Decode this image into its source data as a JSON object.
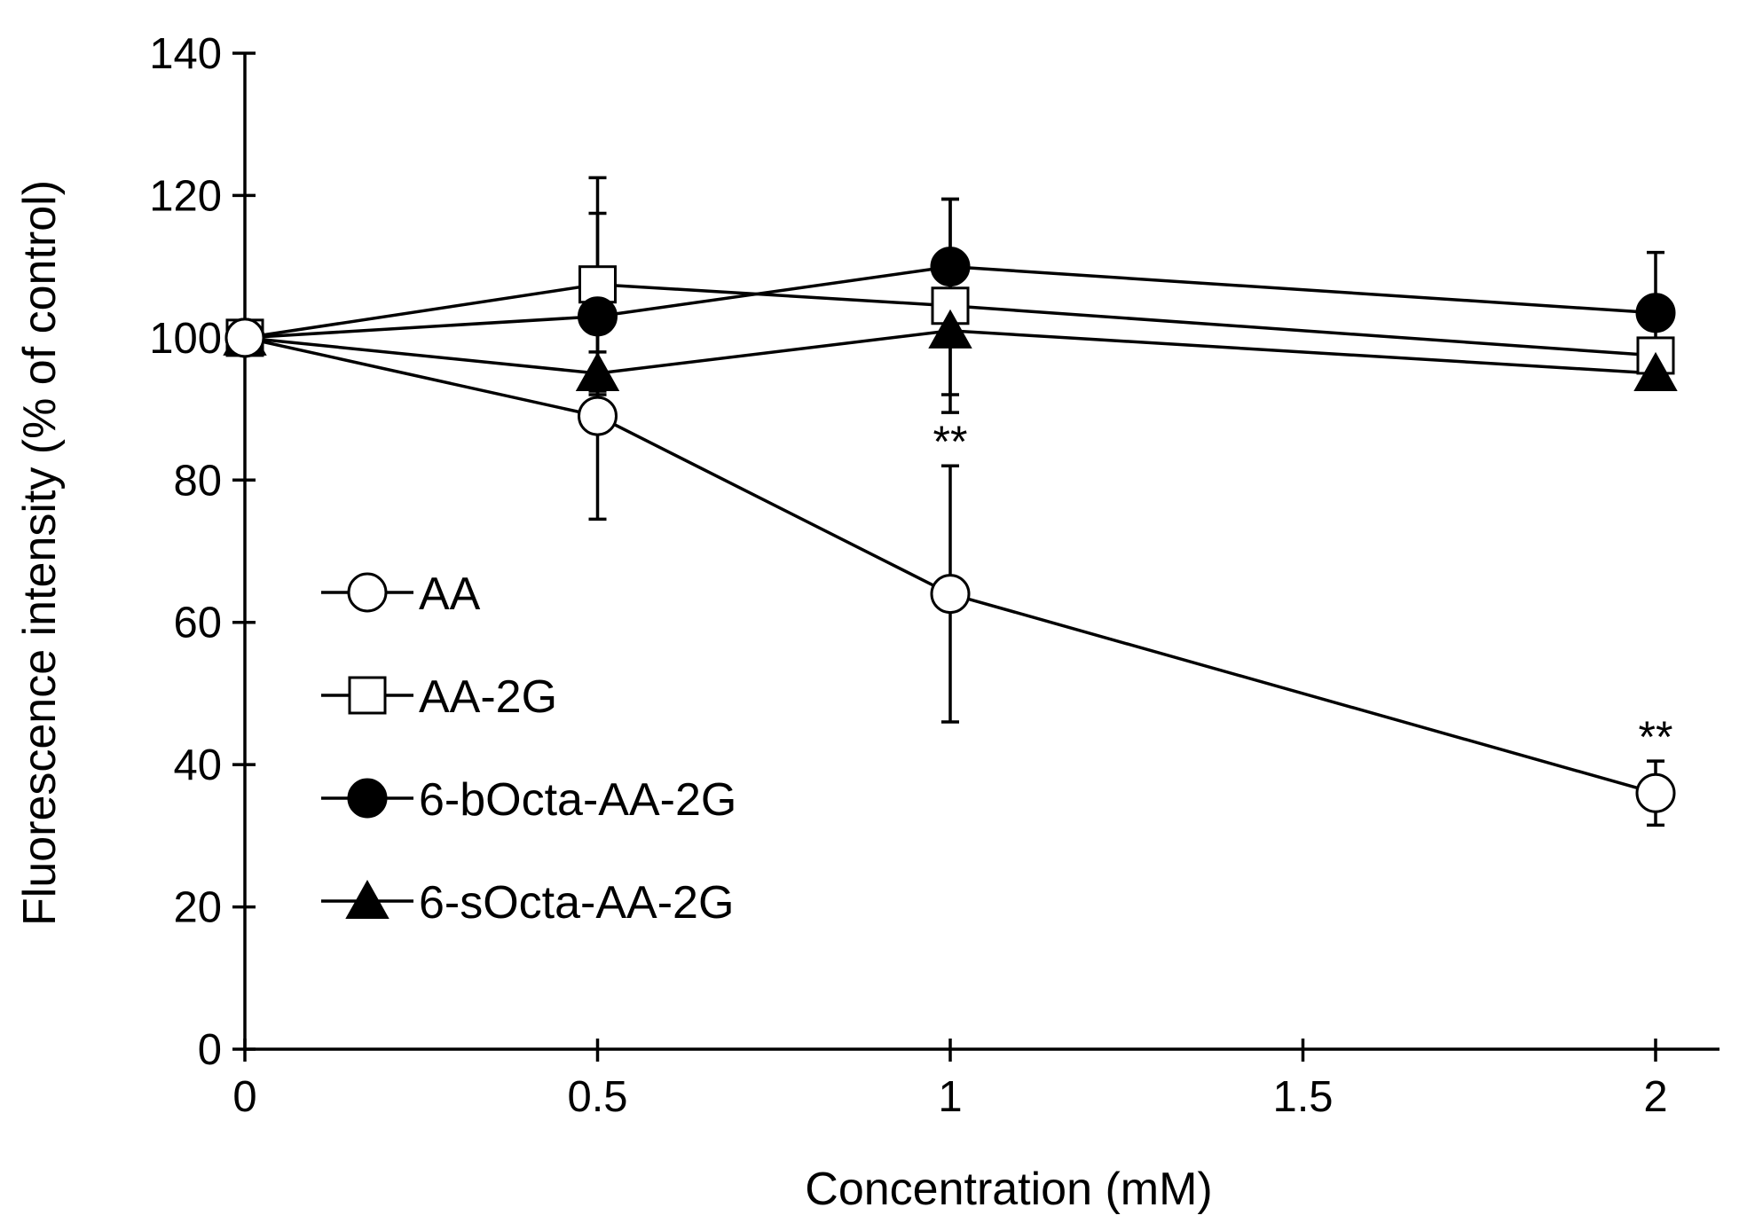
{
  "chart_data": {
    "type": "line",
    "title": "",
    "xlabel": "Concentration (mM)",
    "ylabel": "Fluorescence intensity (% of control)",
    "xlim": [
      0,
      2.1
    ],
    "ylim": [
      0,
      140
    ],
    "xticks": [
      0,
      0.5,
      1,
      1.5,
      2
    ],
    "xtick_labels": [
      "0",
      "0.5",
      "1",
      "1.5",
      "2"
    ],
    "yticks": [
      0,
      20,
      40,
      60,
      80,
      100,
      120,
      140
    ],
    "ytick_labels": [
      "0",
      "20",
      "40",
      "60",
      "80",
      "100",
      "120",
      "140"
    ],
    "grid": false,
    "legend_position": "left",
    "x": [
      0,
      0.5,
      1,
      2
    ],
    "series": [
      {
        "name": "AA",
        "marker": "circle-open",
        "values": [
          100,
          89,
          64,
          36
        ],
        "errors": [
          0,
          14.5,
          18,
          4.5
        ]
      },
      {
        "name": "AA-2G",
        "marker": "square-open",
        "values": [
          100,
          107.5,
          104.5,
          97.5
        ],
        "errors": [
          0,
          15,
          15,
          0
        ]
      },
      {
        "name": "6-bOcta-AA-2G",
        "marker": "circle-filled",
        "values": [
          100,
          103,
          110,
          103.5
        ],
        "errors": [
          0,
          14.5,
          9.5,
          8.5
        ]
      },
      {
        "name": "6-sOcta-AA-2G",
        "marker": "triangle-filled",
        "values": [
          100,
          95,
          101,
          95
        ],
        "errors": [
          0,
          3,
          9,
          0
        ]
      }
    ],
    "annotations": [
      {
        "text": "**",
        "x": 1,
        "y": 82
      },
      {
        "text": "**",
        "x": 2,
        "y": 40.5
      }
    ]
  }
}
